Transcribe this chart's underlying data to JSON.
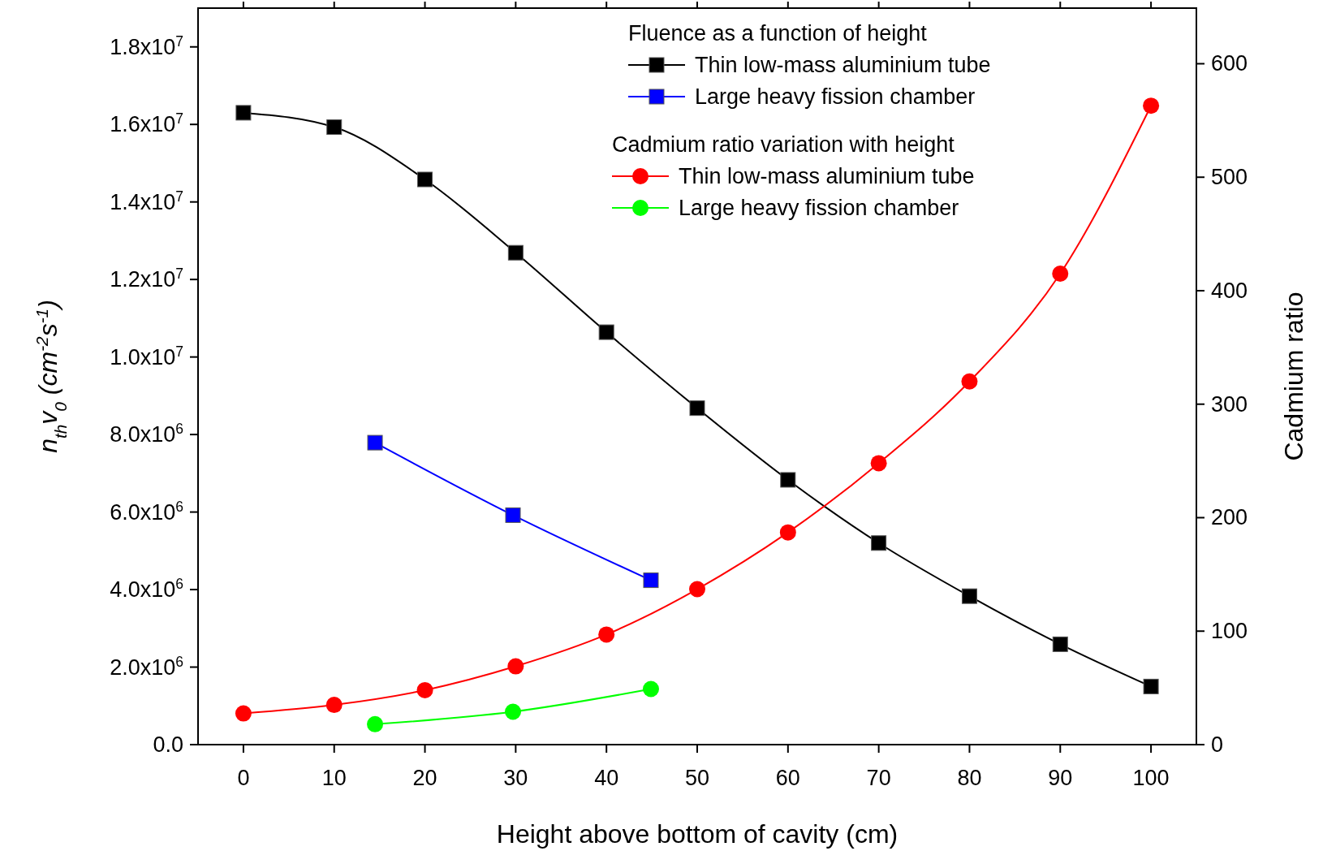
{
  "chart_data": {
    "type": "line",
    "xlabel": "Height above bottom of cavity (cm)",
    "ylabel": "n$_{th}$v$_{0}$  (cm$^{-2}$s$^{-1}$)",
    "y2label": "Cadmium ratio",
    "annotations": [
      "Fluence as a function of height",
      "Cadmium ratio variation with height"
    ],
    "series": [
      {
        "name": "Thin low-mass aluminium tube",
        "color": "#000000",
        "marker": "square",
        "x": [
          0,
          10,
          20,
          30,
          40,
          50,
          60,
          70,
          80,
          90,
          100
        ],
        "values": [
          16300000,
          15930000,
          14580000,
          12690000,
          10640000,
          8680000,
          6830000,
          5200000,
          3830000,
          2590000,
          1500000
        ]
      },
      {
        "name": "Large heavy fission chamber",
        "color": "#0000ff",
        "marker": "square",
        "x": [
          14.5,
          29.7,
          44.9
        ],
        "values": [
          7790000,
          5920000,
          4240000
        ]
      },
      {
        "name": "Thin low-mass aluminium tube",
        "color": "#ff0000",
        "marker": "circle",
        "axis": "y2",
        "x": [
          0,
          10,
          20,
          30,
          40,
          50,
          60,
          70,
          80,
          90,
          100
        ],
        "values": [
          27.5,
          35,
          48,
          69,
          97,
          137,
          187,
          248,
          320,
          415,
          563
        ]
      },
      {
        "name": "Large heavy fission chamber",
        "color": "#00ff00",
        "marker": "circle",
        "axis": "y2",
        "x": [
          14.5,
          29.7,
          44.9
        ],
        "values": [
          18,
          29,
          49
        ]
      }
    ],
    "xlim": [
      -5,
      105
    ],
    "xticks": [
      0,
      10,
      20,
      30,
      40,
      50,
      60,
      70,
      80,
      90,
      100
    ],
    "ylim": [
      0,
      19000000
    ],
    "yticks": [
      {
        "value": 0,
        "label": "0.0"
      },
      {
        "value": 2000000,
        "label": "2.0x10$^{6}$"
      },
      {
        "value": 4000000,
        "label": "4.0x10$^{6}$"
      },
      {
        "value": 6000000,
        "label": "6.0x10$^{6}$"
      },
      {
        "value": 8000000,
        "label": "8.0x10$^{6}$"
      },
      {
        "value": 10000000,
        "label": "1.0x10$^{7}$"
      },
      {
        "value": 12000000,
        "label": "1.2x10$^{7}$"
      },
      {
        "value": 14000000,
        "label": "1.4x10$^{7}$"
      },
      {
        "value": 16000000,
        "label": "1.6x10$^{7}$"
      },
      {
        "value": 18000000,
        "label": "1.8x10$^{7}$"
      }
    ],
    "y2lim": [
      0,
      649
    ],
    "y2ticks": [
      0,
      100,
      200,
      300,
      400,
      500,
      600
    ],
    "legend": "top right",
    "grid": false,
    "line_style": "solid"
  }
}
